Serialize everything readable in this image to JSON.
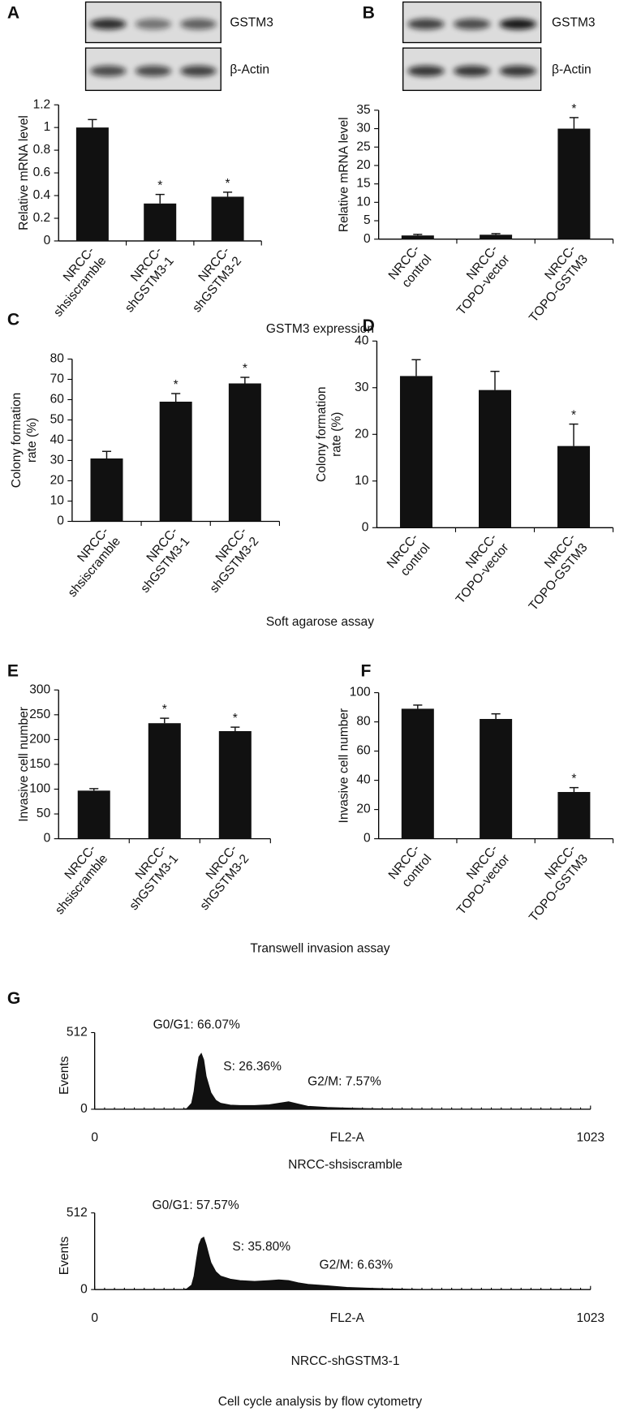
{
  "captions": [
    "GSTM3 expression",
    "Soft agarose assay",
    "Transwell invasion assay",
    "Cell cycle analysis by flow cytometry"
  ],
  "chart_data": [
    {
      "type": "bar",
      "panel": "A",
      "blot": [
        "GSTM3",
        "β-Actin"
      ],
      "ylabel": [
        "Relative mRNA level"
      ],
      "categories": [
        [
          "NRCC-",
          "shsiscramble"
        ],
        [
          "NRCC-",
          "shGSTM3-1"
        ],
        [
          "NRCC-",
          "shGSTM3-2"
        ]
      ],
      "values": [
        1.0,
        0.33,
        0.39
      ],
      "errors": [
        0.07,
        0.08,
        0.04
      ],
      "annotations": [
        null,
        "*",
        "*"
      ],
      "color": "#111111",
      "ylim": [
        0,
        1.2
      ],
      "yticks": [
        0,
        0.2,
        0.4,
        0.6,
        0.8,
        1,
        1.2
      ]
    },
    {
      "type": "bar",
      "panel": "B",
      "blot": [
        "GSTM3",
        "β-Actin"
      ],
      "ylabel": [
        "Relative mRNA level"
      ],
      "categories": [
        [
          "NRCC-",
          "control"
        ],
        [
          "NRCC-",
          "TOPO-vector"
        ],
        [
          "NRCC-",
          "TOPO-GSTM3"
        ]
      ],
      "values": [
        1.0,
        1.2,
        30
      ],
      "errors": [
        0.3,
        0.3,
        3
      ],
      "annotations": [
        null,
        null,
        "*"
      ],
      "color": "#111111",
      "ylim": [
        0,
        35
      ],
      "yticks": [
        0,
        5,
        10,
        15,
        20,
        25,
        30,
        35
      ]
    },
    {
      "type": "bar",
      "panel": "C",
      "ylabel": [
        "Colony formation",
        "rate (%)"
      ],
      "categories": [
        [
          "NRCC-",
          "shsiscramble"
        ],
        [
          "NRCC-",
          "shGSTM3-1"
        ],
        [
          "NRCC-",
          "shGSTM3-2"
        ]
      ],
      "values": [
        31,
        59,
        68
      ],
      "errors": [
        3.5,
        4,
        3
      ],
      "annotations": [
        null,
        "*",
        "*"
      ],
      "color": "#111111",
      "ylim": [
        0,
        80
      ],
      "yticks": [
        0,
        10,
        20,
        30,
        40,
        50,
        60,
        70,
        80
      ]
    },
    {
      "type": "bar",
      "panel": "D",
      "ylabel": [
        "Colony formation",
        "rate (%)"
      ],
      "categories": [
        [
          "NRCC-",
          "control"
        ],
        [
          "NRCC-",
          "TOPO-vector"
        ],
        [
          "NRCC-",
          "TOPO-GSTM3"
        ]
      ],
      "values": [
        32.5,
        29.5,
        17.5
      ],
      "errors": [
        3.5,
        4,
        4.7
      ],
      "annotations": [
        null,
        null,
        "*"
      ],
      "color": "#111111",
      "ylim": [
        0,
        40
      ],
      "yticks": [
        0,
        10,
        20,
        30,
        40
      ]
    },
    {
      "type": "bar",
      "panel": "E",
      "ylabel": [
        "Invasive cell number"
      ],
      "categories": [
        [
          "NRCC-",
          "shsiscramble"
        ],
        [
          "NRCC-",
          "shGSTM3-1"
        ],
        [
          "NRCC-",
          "shGSTM3-2"
        ]
      ],
      "values": [
        97,
        233,
        217
      ],
      "errors": [
        4,
        10,
        8
      ],
      "annotations": [
        null,
        "*",
        "*"
      ],
      "color": "#111111",
      "ylim": [
        0,
        300
      ],
      "yticks": [
        0,
        50,
        100,
        150,
        200,
        250,
        300
      ]
    },
    {
      "type": "bar",
      "panel": "F",
      "ylabel": [
        "Invasive cell number"
      ],
      "categories": [
        [
          "NRCC-",
          "control"
        ],
        [
          "NRCC-",
          "TOPO-vector"
        ],
        [
          "NRCC-",
          "TOPO-GSTM3"
        ]
      ],
      "values": [
        89,
        82,
        32
      ],
      "errors": [
        2.5,
        3.5,
        3
      ],
      "annotations": [
        null,
        null,
        "*"
      ],
      "color": "#111111",
      "ylim": [
        0,
        100
      ],
      "yticks": [
        0,
        20,
        40,
        60,
        80,
        100
      ]
    },
    {
      "type": "area",
      "panel": "G",
      "caption": "NRCC-shsiscramble",
      "xlabel": "FL2-A",
      "ylabel": [
        "Events"
      ],
      "annotations": [
        "G0/G1: 66.07%",
        "S: 26.36%",
        "G2/M: 7.57%"
      ],
      "color": "#111111",
      "x": [
        0,
        180,
        190,
        200,
        205,
        210,
        215,
        220,
        225,
        230,
        240,
        250,
        260,
        280,
        300,
        330,
        360,
        380,
        400,
        420,
        440,
        480,
        520,
        560,
        600,
        640,
        700,
        1023
      ],
      "values": [
        0,
        0,
        5,
        40,
        120,
        250,
        350,
        373,
        330,
        220,
        110,
        60,
        40,
        28,
        25,
        25,
        30,
        40,
        50,
        35,
        20,
        12,
        8,
        5,
        3,
        1,
        0,
        0
      ],
      "xlim": [
        0,
        1023
      ],
      "xticks": [
        0,
        1023
      ],
      "ylim": [
        0,
        512
      ],
      "yticks": [
        0,
        512
      ]
    },
    {
      "type": "area",
      "caption": "NRCC-shGSTM3-1",
      "xlabel": "FL2-A",
      "ylabel": [
        "Events"
      ],
      "annotations": [
        "G0/G1: 57.57%",
        "S: 35.80%",
        "G2/M: 6.63%"
      ],
      "color": "#111111",
      "x": [
        0,
        180,
        190,
        200,
        205,
        210,
        215,
        220,
        225,
        230,
        235,
        240,
        250,
        260,
        280,
        300,
        330,
        360,
        380,
        400,
        420,
        440,
        480,
        520,
        560,
        600,
        640,
        700,
        1023
      ],
      "values": [
        0,
        0,
        5,
        30,
        90,
        200,
        300,
        340,
        350,
        300,
        240,
        180,
        120,
        90,
        70,
        60,
        55,
        60,
        65,
        60,
        45,
        35,
        25,
        15,
        10,
        6,
        3,
        0,
        0
      ],
      "xlim": [
        0,
        1023
      ],
      "xticks": [
        0,
        1023
      ],
      "ylim": [
        0,
        512
      ],
      "yticks": [
        0,
        512
      ]
    }
  ]
}
